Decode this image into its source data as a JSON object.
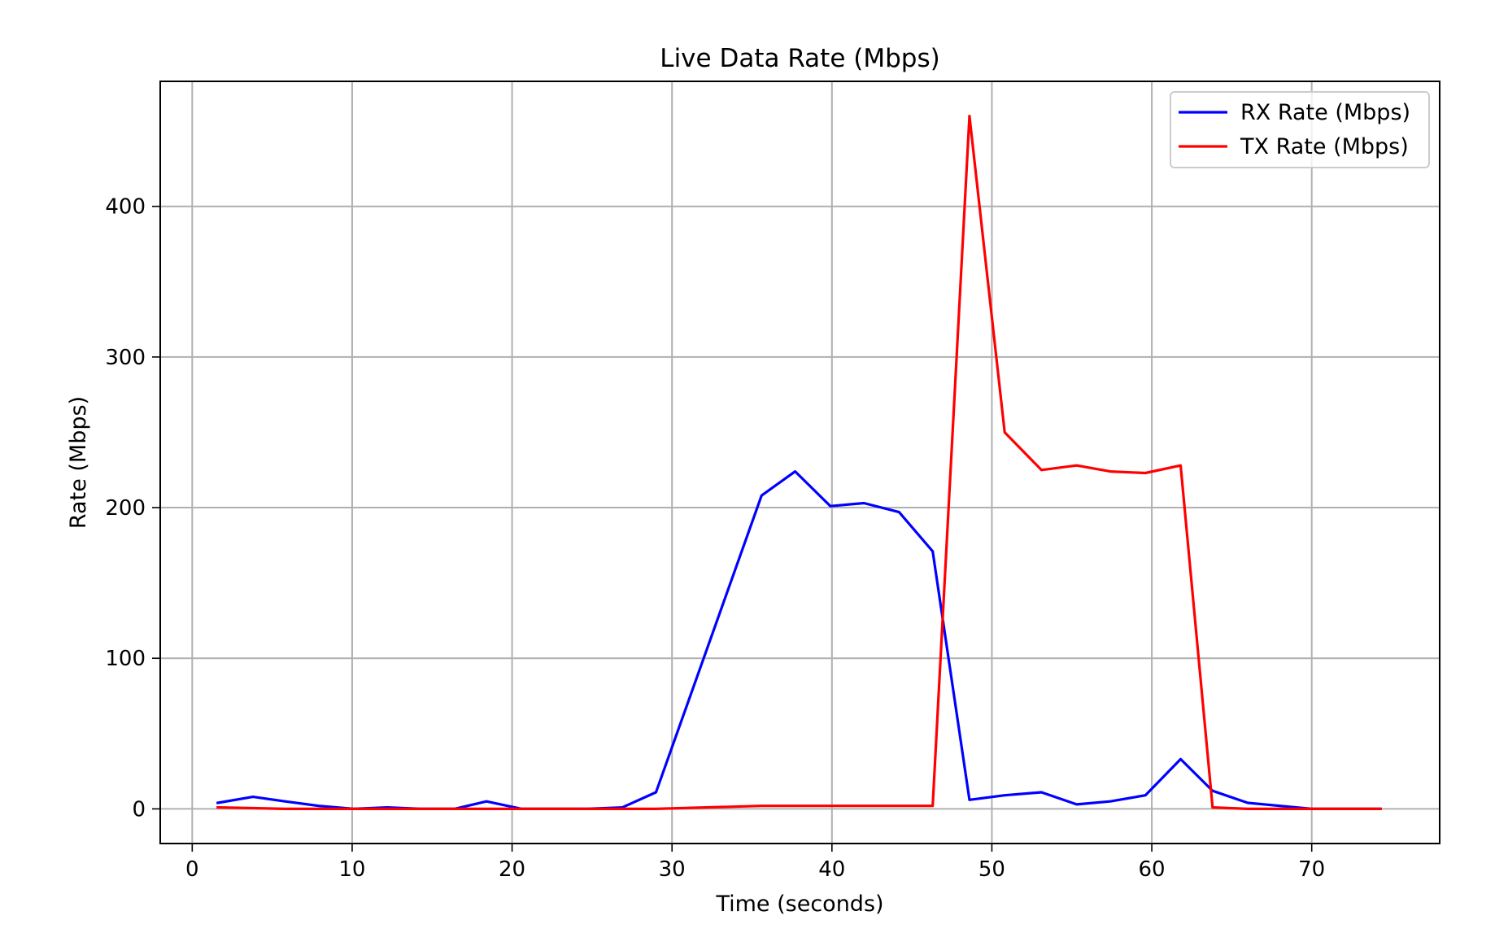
{
  "chart_data": {
    "type": "line",
    "title": "Live Data Rate (Mbps)",
    "xlabel": "Time (seconds)",
    "ylabel": "Rate (Mbps)",
    "xlim": [
      -2,
      78
    ],
    "ylim": [
      -23,
      483
    ],
    "xticks": [
      0,
      10,
      20,
      30,
      40,
      50,
      60,
      70
    ],
    "yticks": [
      0,
      100,
      200,
      300,
      400
    ],
    "grid": true,
    "legend_position": "top-right",
    "series": [
      {
        "name": "RX Rate (Mbps)",
        "color": "#0000ff",
        "x": [
          1.6,
          3.8,
          5.8,
          7.9,
          10.1,
          12.2,
          14.3,
          16.4,
          18.4,
          20.6,
          22.6,
          24.7,
          26.9,
          29.0,
          35.6,
          37.7,
          39.9,
          42.0,
          44.2,
          46.3,
          48.6,
          50.8,
          53.1,
          55.3,
          57.4,
          59.6,
          61.8,
          63.8,
          66.0,
          68.0,
          70.0,
          72.2,
          74.3
        ],
        "y": [
          4,
          8,
          5,
          2,
          0,
          1,
          0,
          0,
          5,
          0,
          0,
          0,
          1,
          11,
          208,
          224,
          201,
          203,
          197,
          171,
          6,
          9,
          11,
          3,
          5,
          9,
          33,
          12,
          4,
          2,
          0,
          0,
          0
        ]
      },
      {
        "name": "TX Rate (Mbps)",
        "color": "#ff0000",
        "x": [
          1.6,
          3.8,
          5.8,
          7.9,
          10.1,
          12.2,
          14.3,
          16.4,
          18.4,
          20.6,
          22.6,
          24.7,
          26.9,
          29.0,
          35.6,
          37.7,
          39.9,
          42.0,
          44.2,
          46.3,
          48.6,
          50.8,
          53.1,
          55.3,
          57.4,
          59.6,
          61.8,
          63.8,
          66.0,
          68.0,
          70.0,
          72.2,
          74.3
        ],
        "y": [
          1,
          0.5,
          0,
          0,
          0,
          0,
          0,
          0,
          0,
          0,
          0,
          0,
          0,
          0,
          2,
          2,
          2,
          2,
          2,
          2,
          460,
          250,
          225,
          228,
          224,
          223,
          228,
          1,
          0,
          0,
          0,
          0,
          0
        ]
      }
    ]
  }
}
